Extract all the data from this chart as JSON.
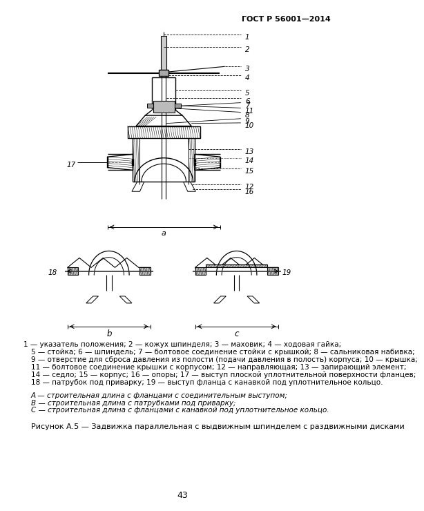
{
  "page_header": "ГОСТ Р 56001—2014",
  "page_number": "43",
  "figure_caption": "Рисунок А.5 — Задвижка параллельная с выдвижным шпинделем с раздвижными дисками",
  "legend_line1": "1 — указатель положения; 2 — кожух шпинделя; 3 — маховик; 4 — ходовая гайка;",
  "legend_line2": "5 — стойка; 6 — шпиндель; 7 — болтовое соединение стойки с крышкой; 8 — сальниковая набивка;",
  "legend_line3": "9 — отверстие для сброса давления из полости (подачи давления в полость) корпуса; 10 — крышка;",
  "legend_line4": "11 — болтовое соединение крышки с корпусом; 12 — направляющая; 13 — запирающий элемент;",
  "legend_line5": "14 — седло; 15 — корпус; 16 — опоры; 17 — выступ плоской уплотнительной поверхности фланцев;",
  "legend_line6": "18 — патрубок под приварку; 19 — выступ фланца с канавкой под уплотнительное кольцо.",
  "abc_line1": "А — строительная длина с фланцами с соединительным выступом;",
  "abc_line2": "В — строительная длина с патрубками под приварку;",
  "abc_line3": "С — строительная длина с фланцами с канавкой под уплотнительное кольцо.",
  "bg_color": "#ffffff",
  "text_color": "#000000",
  "line_color": "#000000",
  "gray_color": "#888888",
  "hatch_color": "#555555"
}
